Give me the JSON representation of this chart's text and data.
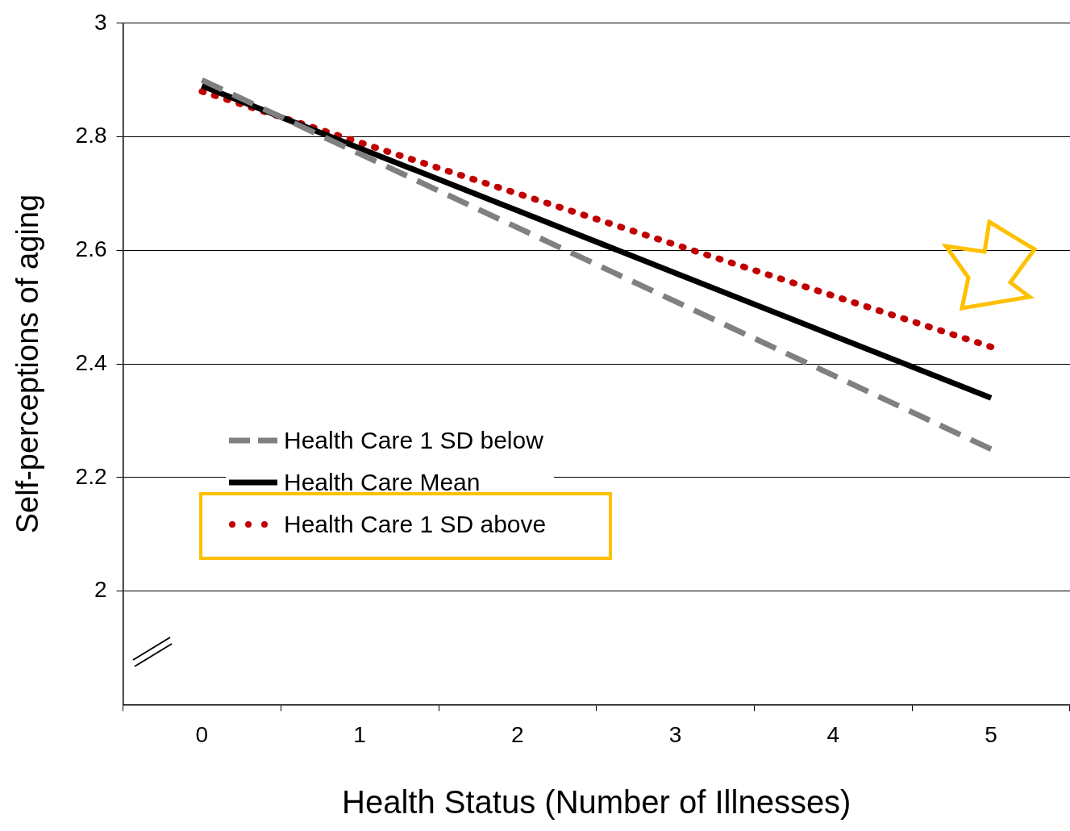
{
  "chart_data": {
    "type": "line",
    "xlabel": "Health Status (Number of Illnesses)",
    "ylabel": "Self-perceptions of aging",
    "categories": [
      "0",
      "1",
      "2",
      "3",
      "4",
      "5"
    ],
    "series": [
      {
        "name": "Health Care 1 SD below",
        "color": "#808080",
        "line_style": "dashed",
        "values": [
          2.9,
          2.77,
          2.64,
          2.51,
          2.38,
          2.25
        ]
      },
      {
        "name": "Health Care Mean",
        "color": "#000000",
        "line_style": "solid",
        "values": [
          2.89,
          2.78,
          2.67,
          2.56,
          2.45,
          2.34
        ]
      },
      {
        "name": "Health Care 1 SD above",
        "color": "#c00000",
        "line_style": "dotted",
        "values": [
          2.88,
          2.79,
          2.7,
          2.61,
          2.52,
          2.43
        ]
      }
    ],
    "ylim": [
      1.8,
      3
    ],
    "yticks": [
      2,
      2.2,
      2.4,
      2.6,
      2.8,
      3
    ],
    "grid": "y",
    "legend": "bottom left",
    "marker": "none"
  }
}
